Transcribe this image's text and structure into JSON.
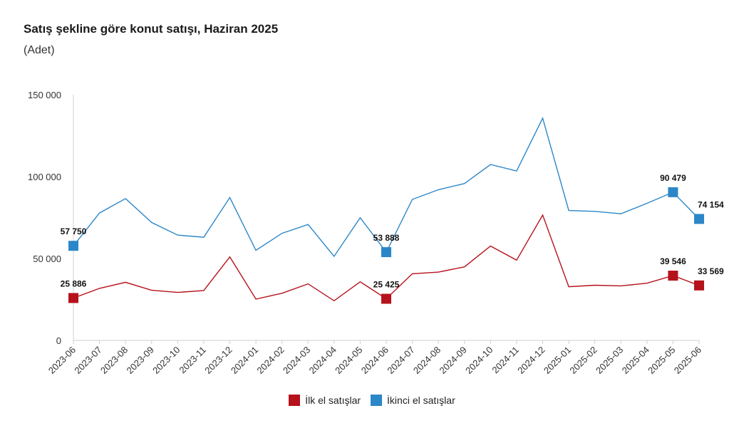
{
  "chart_data": {
    "type": "line",
    "title": "Satış şekline göre konut satışı, Haziran 2025",
    "subtitle": "(Adet)",
    "categories": [
      "2023-06",
      "2023-07",
      "2023-08",
      "2023-09",
      "2023-10",
      "2023-11",
      "2023-12",
      "2024-01",
      "2024-02",
      "2024-03",
      "2024-04",
      "2024-05",
      "2024-06",
      "2024-07",
      "2024-08",
      "2024-09",
      "2024-10",
      "2024-11",
      "2024-12",
      "2025-01",
      "2025-02",
      "2025-03",
      "2025-04",
      "2025-05",
      "2025-06"
    ],
    "ylim": [
      0,
      150000
    ],
    "yticks": [
      0,
      50000,
      100000,
      150000
    ],
    "ytick_labels": [
      "0",
      "50 000",
      "100 000",
      "150 000"
    ],
    "grid": false,
    "legend_position": "bottom",
    "series": [
      {
        "name": "İlk el satışlar",
        "color": "#b5121b",
        "values": [
          25886,
          31800,
          35500,
          30600,
          29300,
          30500,
          51000,
          25200,
          28800,
          34500,
          24200,
          35800,
          25425,
          40700,
          41700,
          44900,
          57600,
          49000,
          76500,
          32800,
          33700,
          33300,
          34900,
          39546,
          33569
        ],
        "marker_indices": [
          0,
          12,
          23,
          24
        ],
        "marker_labels": [
          "25 886",
          "25 425",
          "39 546",
          "33 569"
        ]
      },
      {
        "name": "İkinci el satışlar",
        "color": "#2b87c8",
        "values": [
          57750,
          77800,
          86600,
          72000,
          64300,
          63000,
          87200,
          55000,
          65400,
          70800,
          51300,
          74900,
          53888,
          86100,
          92000,
          95800,
          107400,
          103500,
          135700,
          79300,
          78800,
          77300,
          83700,
          90479,
          74154
        ],
        "marker_indices": [
          0,
          12,
          23,
          24
        ],
        "marker_labels": [
          "57 750",
          "53 888",
          "90 479",
          "74 154"
        ]
      }
    ]
  }
}
